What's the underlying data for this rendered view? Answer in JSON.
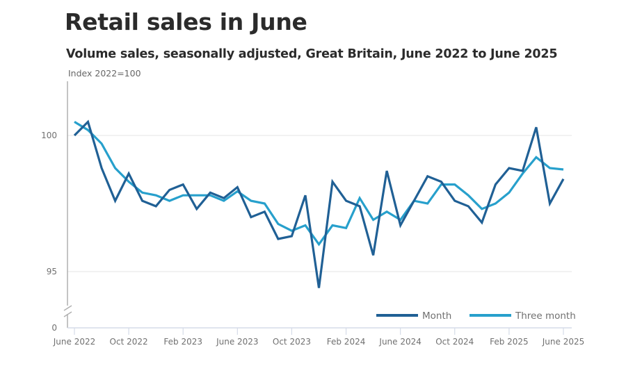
{
  "header": {
    "title": "Retail sales in June",
    "subtitle": "Volume sales, seasonally adjusted, Great Britain, June 2022 to June 2025"
  },
  "chart_data": {
    "type": "line",
    "title": "Retail sales in June",
    "subtitle": "Volume sales, seasonally adjusted, Great Britain, June 2022 to June 2025",
    "xlabel": "",
    "ylabel": "Index 2022=100",
    "ylim": [
      94,
      102
    ],
    "y_axis_break": true,
    "y_ticks": [
      {
        "value": 100,
        "label": "100"
      },
      {
        "value": 95,
        "label": "95"
      },
      {
        "value": 0,
        "label": "0",
        "below_break": true
      }
    ],
    "x_tick_labels": [
      {
        "index": 0,
        "label": "June 2022"
      },
      {
        "index": 4,
        "label": "Oct 2022"
      },
      {
        "index": 8,
        "label": "Feb 2023"
      },
      {
        "index": 12,
        "label": "June 2023"
      },
      {
        "index": 16,
        "label": "Oct 2023"
      },
      {
        "index": 20,
        "label": "Feb 2024"
      },
      {
        "index": 24,
        "label": "June 2024"
      },
      {
        "index": 28,
        "label": "Oct 2024"
      },
      {
        "index": 32,
        "label": "Feb 2025"
      },
      {
        "index": 36,
        "label": "June 2025"
      }
    ],
    "x": [
      "Jun 2022",
      "Jul 2022",
      "Aug 2022",
      "Sep 2022",
      "Oct 2022",
      "Nov 2022",
      "Dec 2022",
      "Jan 2023",
      "Feb 2023",
      "Mar 2023",
      "Apr 2023",
      "May 2023",
      "Jun 2023",
      "Jul 2023",
      "Aug 2023",
      "Sep 2023",
      "Oct 2023",
      "Nov 2023",
      "Dec 2023",
      "Jan 2024",
      "Feb 2024",
      "Mar 2024",
      "Apr 2024",
      "May 2024",
      "Jun 2024",
      "Jul 2024",
      "Aug 2024",
      "Sep 2024",
      "Oct 2024",
      "Nov 2024",
      "Dec 2024",
      "Jan 2025",
      "Feb 2025",
      "Mar 2025",
      "Apr 2025",
      "May 2025",
      "Jun 2025"
    ],
    "series": [
      {
        "name": "Month",
        "color": "#206095",
        "values": [
          100.0,
          100.5,
          98.8,
          97.6,
          98.6,
          97.6,
          97.4,
          98.0,
          98.2,
          97.3,
          97.9,
          97.7,
          98.1,
          97.0,
          97.2,
          96.2,
          96.3,
          97.8,
          94.4,
          98.3,
          97.6,
          97.4,
          95.6,
          98.7,
          96.7,
          97.6,
          98.5,
          98.3,
          97.6,
          97.4,
          96.8,
          98.2,
          98.8,
          98.7,
          100.3,
          97.5,
          98.4
        ]
      },
      {
        "name": "Three month",
        "color": "#27a0cc",
        "values": [
          100.5,
          100.2,
          99.7,
          98.8,
          98.3,
          97.9,
          97.8,
          97.6,
          97.8,
          97.8,
          97.8,
          97.6,
          97.95,
          97.6,
          97.5,
          96.75,
          96.5,
          96.7,
          96.0,
          96.7,
          96.6,
          97.7,
          96.9,
          97.2,
          96.9,
          97.6,
          97.5,
          98.2,
          98.2,
          97.8,
          97.3,
          97.5,
          97.9,
          98.6,
          99.2,
          98.8,
          98.75
        ]
      }
    ],
    "legend": {
      "placement": "bottom-right",
      "entries": [
        "Month",
        "Three month"
      ]
    },
    "grid": true
  }
}
